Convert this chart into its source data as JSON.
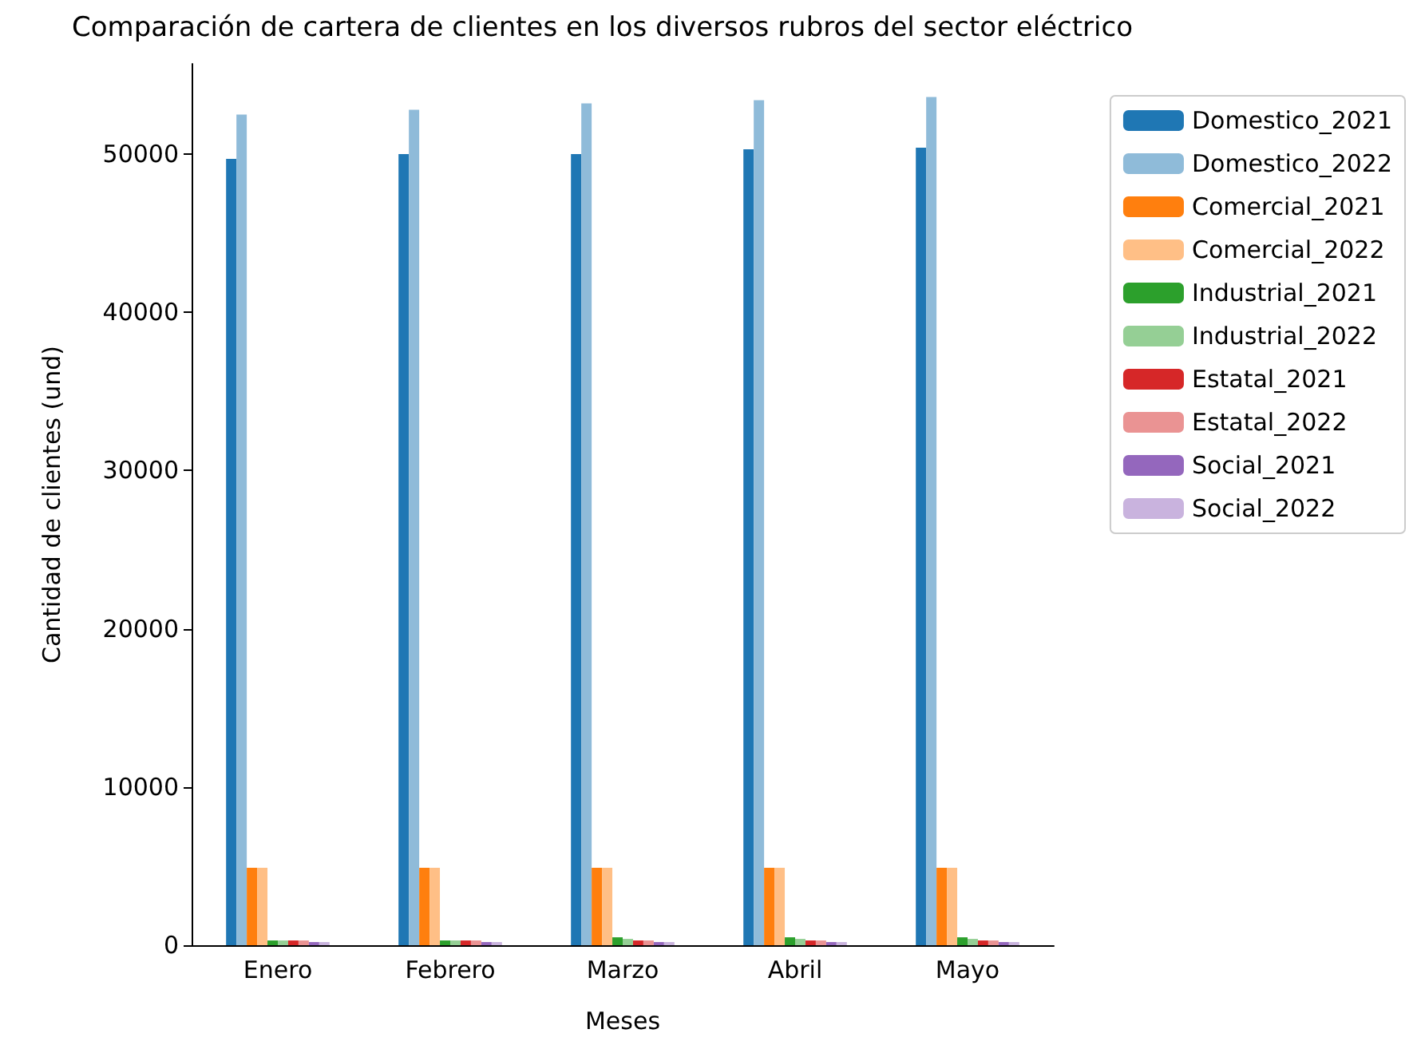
{
  "chart_data": {
    "type": "bar",
    "title": "Comparación de cartera de clientes en los diversos rubros del sector eléctrico",
    "xlabel": "Meses",
    "ylabel": "Cantidad de clientes (und)",
    "categories": [
      "Enero",
      "Febrero",
      "Marzo",
      "Abril",
      "Mayo"
    ],
    "series": [
      {
        "name": "Domestico_2021",
        "color": "#1f77b4",
        "values": [
          49700,
          50000,
          50000,
          50300,
          50400
        ]
      },
      {
        "name": "Domestico_2022",
        "color": "#8fbbd9",
        "values": [
          52500,
          52800,
          53200,
          53400,
          53600
        ]
      },
      {
        "name": "Comercial_2021",
        "color": "#ff7f0e",
        "values": [
          4900,
          4900,
          4900,
          4900,
          4900
        ]
      },
      {
        "name": "Comercial_2022",
        "color": "#ffbf86",
        "values": [
          4900,
          4900,
          4900,
          4900,
          4900
        ]
      },
      {
        "name": "Industrial_2021",
        "color": "#2ca02c",
        "values": [
          300,
          300,
          500,
          500,
          500
        ]
      },
      {
        "name": "Industrial_2022",
        "color": "#95cf95",
        "values": [
          300,
          300,
          400,
          400,
          400
        ]
      },
      {
        "name": "Estatal_2021",
        "color": "#d62728",
        "values": [
          300,
          300,
          300,
          300,
          300
        ]
      },
      {
        "name": "Estatal_2022",
        "color": "#ea9393",
        "values": [
          300,
          300,
          300,
          300,
          300
        ]
      },
      {
        "name": "Social_2021",
        "color": "#9467bd",
        "values": [
          200,
          200,
          200,
          200,
          200
        ]
      },
      {
        "name": "Social_2022",
        "color": "#c9b3de",
        "values": [
          200,
          200,
          200,
          200,
          200
        ]
      }
    ],
    "ylim": [
      0,
      55700
    ],
    "yticks": [
      0,
      10000,
      20000,
      30000,
      40000,
      50000
    ],
    "grid": false,
    "legend": "right"
  }
}
